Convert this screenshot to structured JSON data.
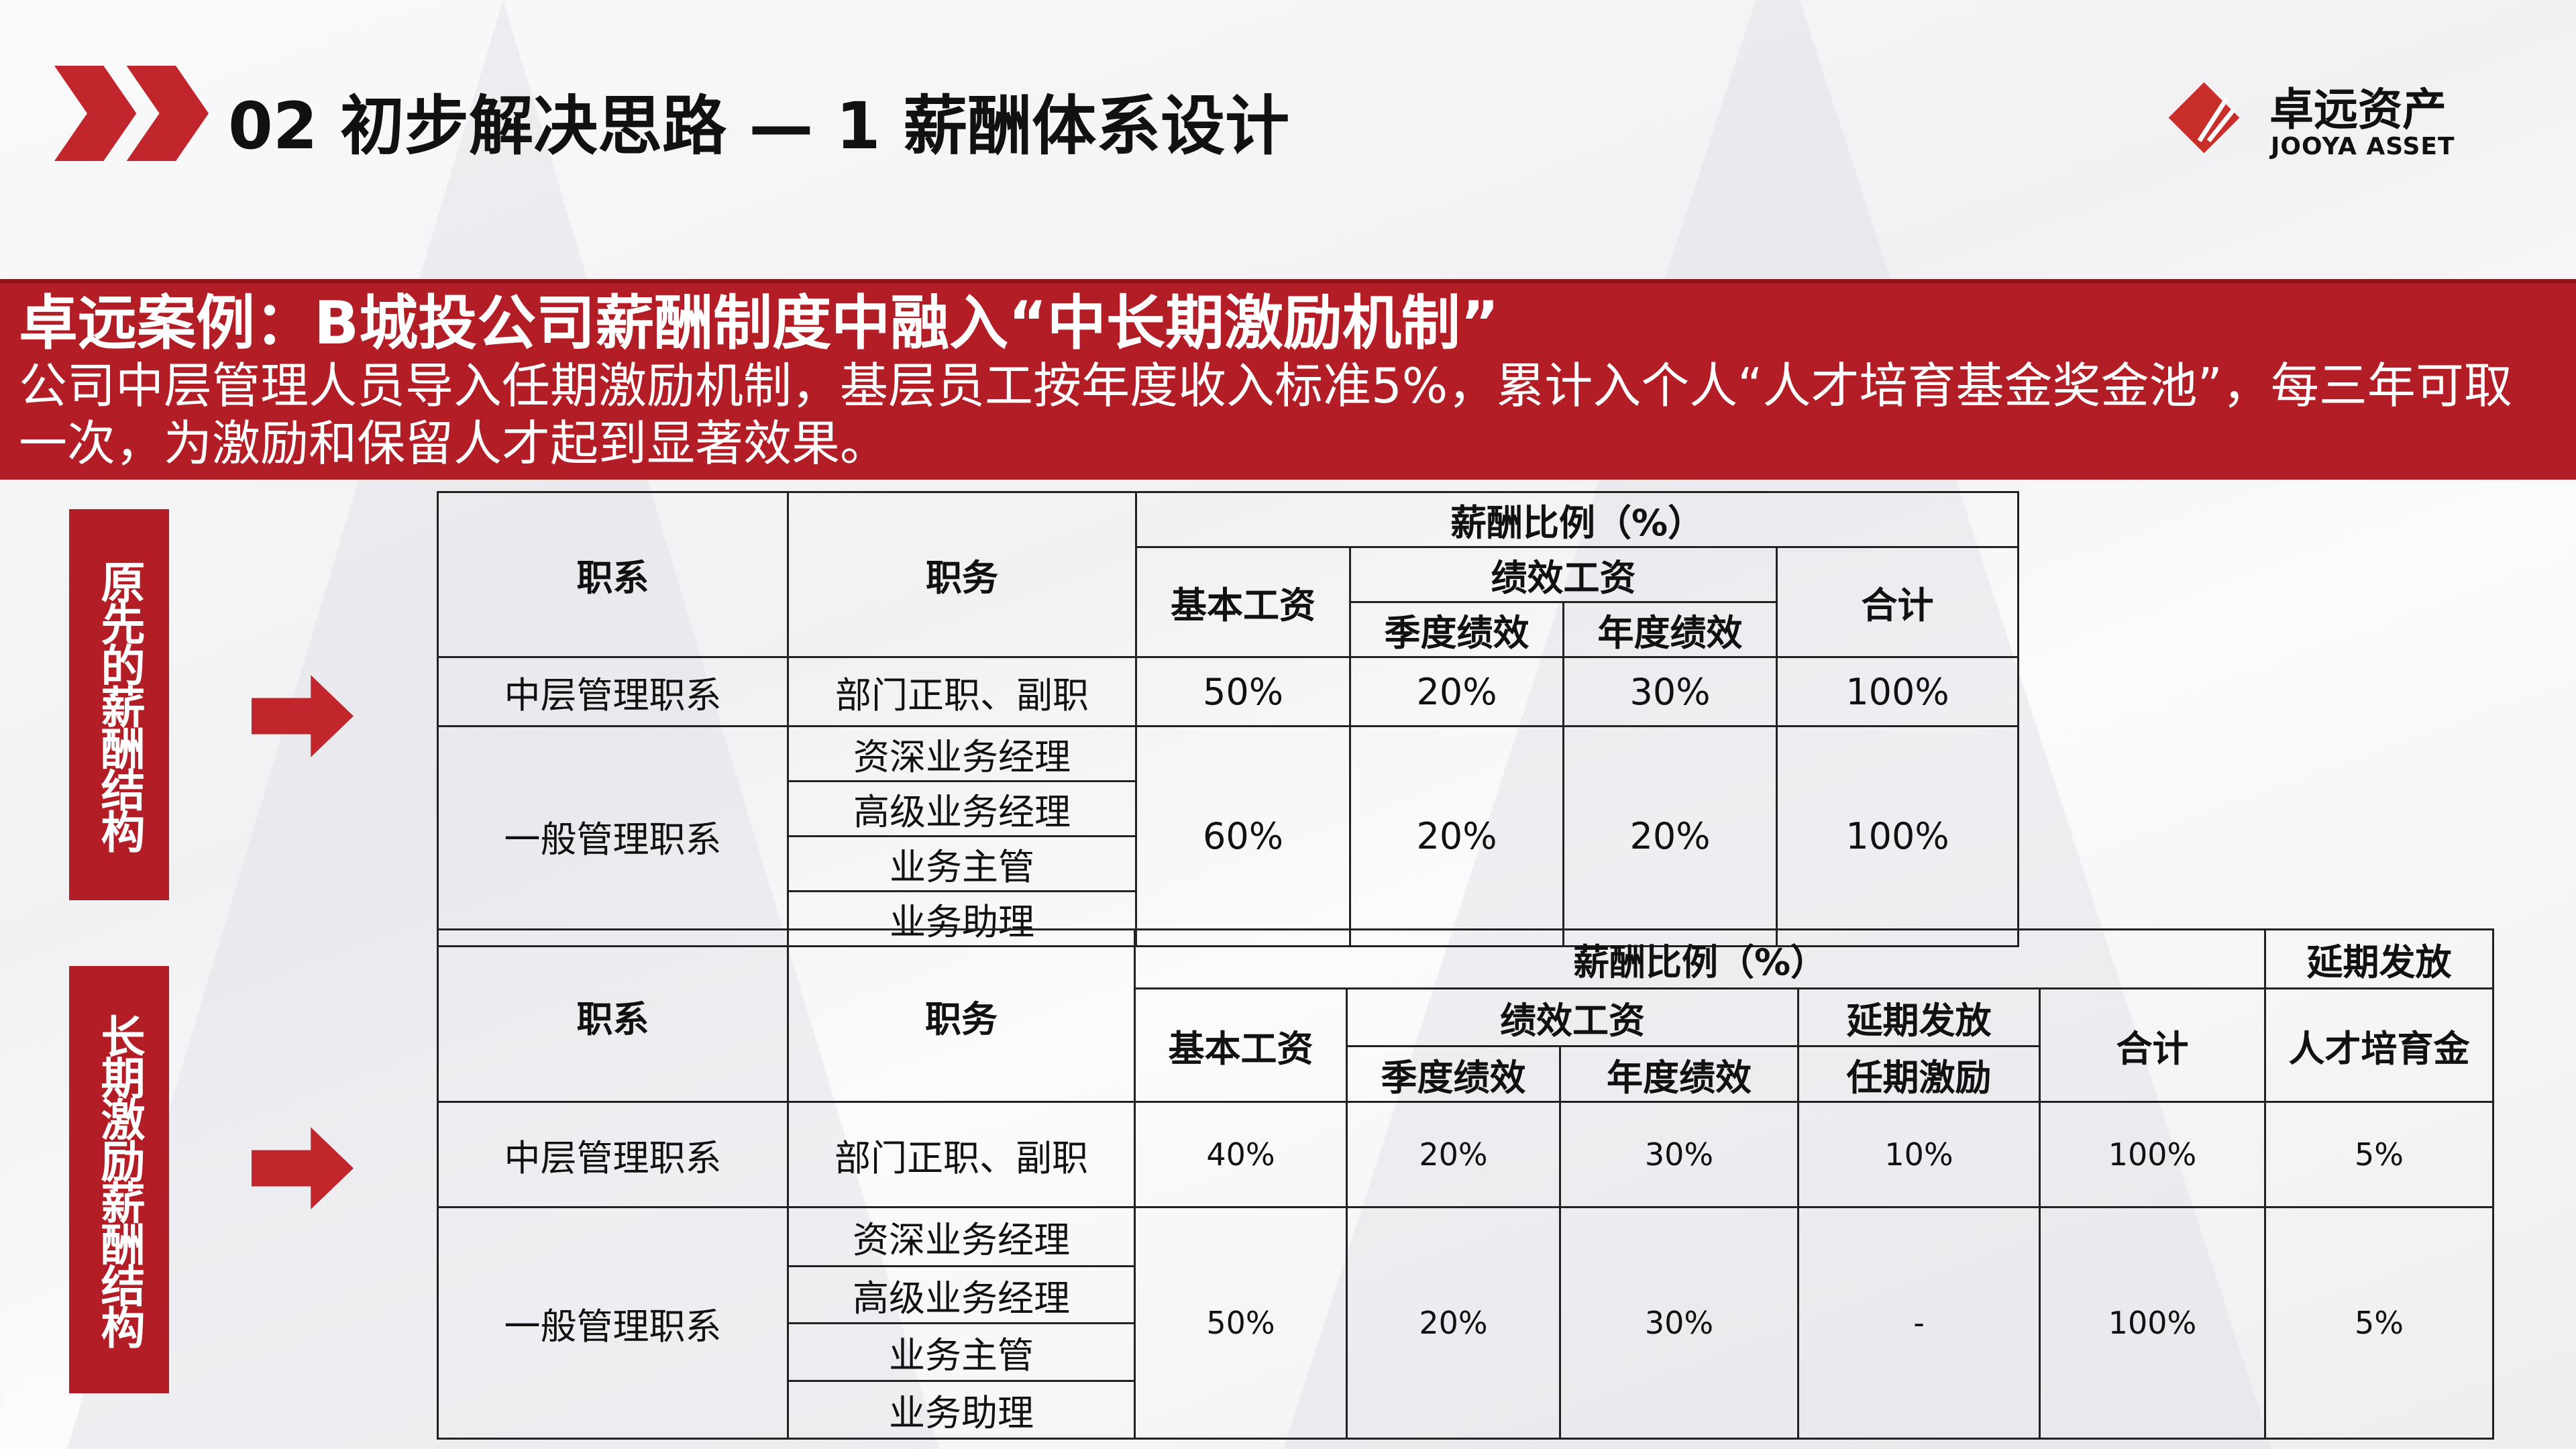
{
  "header": {
    "title": "02 初步解决思路 — 1 薪酬体系设计",
    "logo_cn": "卓远资产",
    "logo_en": "JOOYA ASSET"
  },
  "colors": {
    "brand_red": "#b31d25",
    "text": "#111111"
  },
  "banner": {
    "heading": "卓远案例：B城投公司薪酬制度中融入“中长期激励机制”",
    "body": "公司中层管理人员导入任期激励机制，基层员工按年度收入标准5%，累计入个人“人才培育基金奖金池”，每三年可取一次，为激励和保留人才起到显著效果。"
  },
  "labels": {
    "original": "原先的薪酬结构",
    "longterm": "长期激励薪酬结构"
  },
  "table1": {
    "h_series": "职系",
    "h_position": "职务",
    "h_ratio": "薪酬比例（%）",
    "h_base": "基本工资",
    "h_perf": "绩效工资",
    "h_quarter": "季度绩效",
    "h_annual": "年度绩效",
    "h_total": "合计",
    "row1": {
      "series": "中层管理职系",
      "position": "部门正职、副职",
      "base": "50%",
      "quarter": "20%",
      "annual": "30%",
      "total": "100%"
    },
    "row2": {
      "series": "一般管理职系",
      "positions": [
        "资深业务经理",
        "高级业务经理",
        "业务主管",
        "业务助理"
      ],
      "base": "60%",
      "quarter": "20%",
      "annual": "20%",
      "total": "100%"
    }
  },
  "table2": {
    "h_series": "职系",
    "h_position": "职务",
    "h_ratio": "薪酬比例（%）",
    "h_deferred_top": "延期发放",
    "h_base": "基本工资",
    "h_perf": "绩效工资",
    "h_deferred": "延期发放",
    "h_total": "合计",
    "h_talent": "人才培育金",
    "h_quarter": "季度绩效",
    "h_annual": "年度绩效",
    "h_tenure": "任期激励",
    "row1": {
      "series": "中层管理职系",
      "position": "部门正职、副职",
      "base": "40%",
      "quarter": "20%",
      "annual": "30%",
      "tenure": "10%",
      "total": "100%",
      "talent": "5%"
    },
    "row2": {
      "series": "一般管理职系",
      "positions": [
        "资深业务经理",
        "高级业务经理",
        "业务主管",
        "业务助理"
      ],
      "base": "50%",
      "quarter": "20%",
      "annual": "30%",
      "tenure": "-",
      "total": "100%",
      "talent": "5%"
    }
  }
}
